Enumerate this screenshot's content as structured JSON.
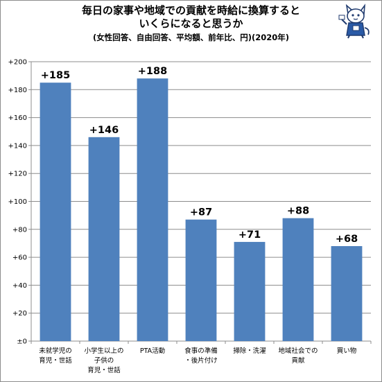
{
  "header": {
    "title_line1": "毎日の家事や地域での貢献を時給に換算すると",
    "title_line2": "いくらになると思うか",
    "subtitle": "(女性回答、自由回答、平均額、前年比、円)(2020年)"
  },
  "mascot_icon": "cat-mascot-icon",
  "chart_data": {
    "type": "bar",
    "title": "毎日の家事や地域での貢献を時給に換算すると いくらになると思うか",
    "subtitle": "(女性回答、自由回答、平均額、前年比、円)(2020年)",
    "categories": [
      [
        "未就学児の",
        "育児・世話"
      ],
      [
        "小学生以上の",
        "子供の",
        "育児・世話"
      ],
      [
        "PTA活動"
      ],
      [
        "食事の準備",
        "・後片付け"
      ],
      [
        "掃除・洗濯"
      ],
      [
        "地域社会での",
        "貢献"
      ],
      [
        "買い物"
      ]
    ],
    "values": [
      185,
      146,
      188,
      87,
      71,
      88,
      68
    ],
    "data_labels": [
      "+185",
      "+146",
      "+188",
      "+87",
      "+71",
      "+88",
      "+68"
    ],
    "ylim": [
      0,
      200
    ],
    "yticks": [
      0,
      20,
      40,
      60,
      80,
      100,
      120,
      140,
      160,
      180,
      200
    ],
    "ytick_labels": [
      "±0",
      "+20",
      "+40",
      "+60",
      "+80",
      "+100",
      "+120",
      "+140",
      "+160",
      "+180",
      "+200"
    ],
    "bar_color": "#4f81bd",
    "grid": true,
    "xlabel": "",
    "ylabel": "",
    "legend": "none"
  }
}
